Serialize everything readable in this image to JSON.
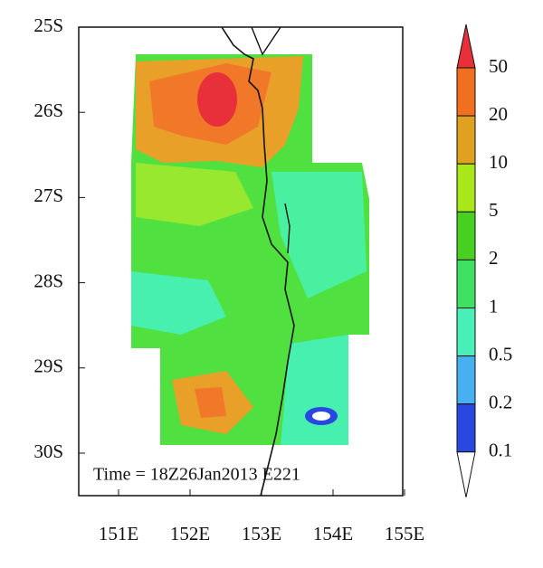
{
  "map": {
    "xticks": [
      "151E",
      "152E",
      "153E",
      "154E",
      "155E"
    ],
    "yticks": [
      "25S",
      "26S",
      "27S",
      "28S",
      "29S",
      "30S"
    ],
    "annotation": "Time = 18Z26Jan2013 E221",
    "colorbar": {
      "levels": [
        50,
        20,
        10,
        5,
        2,
        1,
        0.5,
        0.2,
        0.1
      ],
      "colors": [
        "#e8303a",
        "#f07020",
        "#e0a020",
        "#a8e818",
        "#48d020",
        "#40e060",
        "#48f0b8",
        "#48b0f0",
        "#2848e0",
        "#ffffff"
      ]
    }
  }
}
